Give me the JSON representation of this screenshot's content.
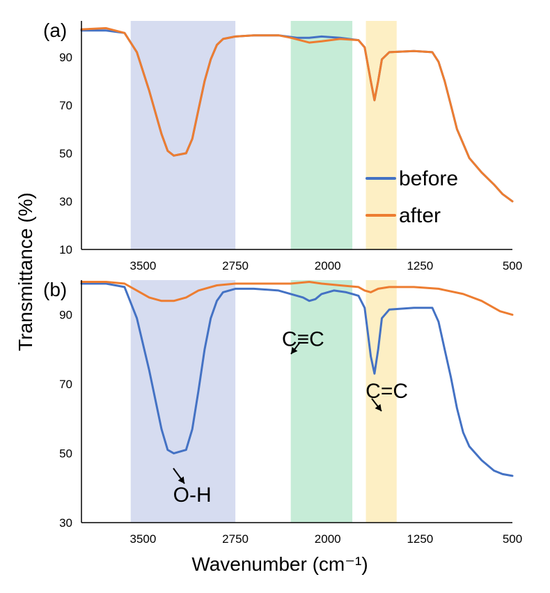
{
  "figure": {
    "shared_ylabel": "Transmittance (%)",
    "shared_xlabel": "Wavenumber (cm⁻¹)"
  },
  "colors": {
    "before": "#4472c4",
    "after": "#ed7d31",
    "band_oh": "#d6dcf0",
    "band_cc_triple": "#c6ecd7",
    "band_cc_double": "#fdefc4",
    "axis": "#000000"
  },
  "chart_data": [
    {
      "type": "line",
      "panel_label": "(a)",
      "xlim": [
        4000,
        500
      ],
      "ylim": [
        10,
        105
      ],
      "x_ticks": [
        3500,
        2750,
        2000,
        1250,
        500
      ],
      "y_ticks": [
        10,
        30,
        50,
        70,
        90
      ],
      "grid": false,
      "legend": {
        "position": "right-center",
        "entries": [
          "before",
          "after"
        ]
      },
      "bands": [
        {
          "name": "O-H",
          "from": 3600,
          "to": 2750,
          "color_key": "band_oh"
        },
        {
          "name": "C≡C",
          "from": 2300,
          "to": 1800,
          "color_key": "band_cc_triple"
        },
        {
          "name": "C=C",
          "from": 1690,
          "to": 1440,
          "color_key": "band_cc_double"
        }
      ],
      "series": [
        {
          "name": "before",
          "color_key": "before",
          "points": [
            [
              4000,
              101
            ],
            [
              3800,
              101
            ],
            [
              3650,
              100
            ],
            [
              3550,
              92
            ],
            [
              3450,
              76
            ],
            [
              3350,
              58
            ],
            [
              3300,
              51
            ],
            [
              3250,
              49
            ],
            [
              3150,
              50
            ],
            [
              3100,
              56
            ],
            [
              3050,
              68
            ],
            [
              3000,
              80
            ],
            [
              2950,
              89
            ],
            [
              2900,
              95
            ],
            [
              2850,
              97.5
            ],
            [
              2750,
              98.5
            ],
            [
              2600,
              99
            ],
            [
              2400,
              99
            ],
            [
              2250,
              98
            ],
            [
              2150,
              98
            ],
            [
              2050,
              98.5
            ],
            [
              1900,
              98
            ],
            [
              1750,
              97
            ],
            [
              1700,
              94
            ],
            [
              1650,
              80
            ],
            [
              1620,
              72
            ],
            [
              1590,
              80
            ],
            [
              1560,
              89
            ],
            [
              1500,
              92
            ],
            [
              1300,
              92.5
            ],
            [
              1150,
              92
            ],
            [
              1100,
              88
            ],
            [
              1050,
              80
            ],
            [
              1000,
              70
            ],
            [
              950,
              60
            ],
            [
              900,
              54
            ],
            [
              850,
              48
            ],
            [
              750,
              42
            ],
            [
              650,
              37
            ],
            [
              580,
              33
            ],
            [
              500,
              30
            ]
          ]
        },
        {
          "name": "after",
          "color_key": "after",
          "points": [
            [
              4000,
              101.5
            ],
            [
              3800,
              102
            ],
            [
              3650,
              100
            ],
            [
              3550,
              92
            ],
            [
              3450,
              76
            ],
            [
              3350,
              58
            ],
            [
              3300,
              51
            ],
            [
              3250,
              49
            ],
            [
              3150,
              50
            ],
            [
              3100,
              56
            ],
            [
              3050,
              68
            ],
            [
              3000,
              80
            ],
            [
              2950,
              89
            ],
            [
              2900,
              95
            ],
            [
              2850,
              97.5
            ],
            [
              2750,
              98.5
            ],
            [
              2600,
              99
            ],
            [
              2400,
              99
            ],
            [
              2300,
              98
            ],
            [
              2150,
              96
            ],
            [
              2050,
              96.5
            ],
            [
              1900,
              97.5
            ],
            [
              1750,
              97
            ],
            [
              1700,
              94
            ],
            [
              1650,
              80
            ],
            [
              1620,
              72
            ],
            [
              1590,
              80
            ],
            [
              1560,
              89
            ],
            [
              1500,
              92
            ],
            [
              1300,
              92.5
            ],
            [
              1150,
              92
            ],
            [
              1100,
              88
            ],
            [
              1050,
              80
            ],
            [
              1000,
              70
            ],
            [
              950,
              60
            ],
            [
              900,
              54
            ],
            [
              850,
              48
            ],
            [
              750,
              42
            ],
            [
              650,
              37
            ],
            [
              580,
              33
            ],
            [
              500,
              30
            ]
          ]
        }
      ]
    },
    {
      "type": "line",
      "panel_label": "(b)",
      "xlim": [
        4000,
        500
      ],
      "ylim": [
        30,
        100
      ],
      "x_ticks": [
        3500,
        2750,
        2000,
        1250,
        500
      ],
      "y_ticks": [
        30,
        50,
        70,
        90
      ],
      "grid": false,
      "bands": [
        {
          "name": "O-H",
          "from": 3600,
          "to": 2750,
          "color_key": "band_oh"
        },
        {
          "name": "C≡C",
          "from": 2300,
          "to": 1800,
          "color_key": "band_cc_triple"
        },
        {
          "name": "C=C",
          "from": 1690,
          "to": 1440,
          "color_key": "band_cc_double"
        }
      ],
      "annotations": [
        {
          "text": "O-H",
          "x": 3100,
          "y": 36
        },
        {
          "text": "C≡C",
          "x": 2200,
          "y": 81
        },
        {
          "text": "C=C",
          "x": 1520,
          "y": 66
        }
      ],
      "series": [
        {
          "name": "before",
          "color_key": "before",
          "points": [
            [
              4000,
              99
            ],
            [
              3800,
              99
            ],
            [
              3650,
              98
            ],
            [
              3550,
              89
            ],
            [
              3450,
              74
            ],
            [
              3350,
              57
            ],
            [
              3300,
              51
            ],
            [
              3250,
              50
            ],
            [
              3150,
              51
            ],
            [
              3100,
              57
            ],
            [
              3050,
              68
            ],
            [
              3000,
              80
            ],
            [
              2950,
              89
            ],
            [
              2900,
              94
            ],
            [
              2850,
              96.5
            ],
            [
              2750,
              97.5
            ],
            [
              2600,
              97.5
            ],
            [
              2400,
              97
            ],
            [
              2300,
              96
            ],
            [
              2200,
              95
            ],
            [
              2150,
              94
            ],
            [
              2100,
              94.5
            ],
            [
              2050,
              96
            ],
            [
              1950,
              97
            ],
            [
              1850,
              96.5
            ],
            [
              1750,
              95.5
            ],
            [
              1700,
              92
            ],
            [
              1650,
              78
            ],
            [
              1620,
              73
            ],
            [
              1590,
              80
            ],
            [
              1560,
              89
            ],
            [
              1500,
              91.5
            ],
            [
              1300,
              92
            ],
            [
              1150,
              92
            ],
            [
              1100,
              88
            ],
            [
              1050,
              80
            ],
            [
              1000,
              72
            ],
            [
              950,
              63
            ],
            [
              900,
              56
            ],
            [
              850,
              52
            ],
            [
              750,
              48
            ],
            [
              650,
              45
            ],
            [
              580,
              44
            ],
            [
              500,
              43.5
            ]
          ]
        },
        {
          "name": "after",
          "color_key": "after",
          "points": [
            [
              4000,
              99.5
            ],
            [
              3800,
              99.5
            ],
            [
              3650,
              99
            ],
            [
              3550,
              97
            ],
            [
              3450,
              95
            ],
            [
              3350,
              94
            ],
            [
              3250,
              94
            ],
            [
              3150,
              95
            ],
            [
              3050,
              97
            ],
            [
              2900,
              98.5
            ],
            [
              2750,
              99
            ],
            [
              2500,
              99
            ],
            [
              2300,
              99
            ],
            [
              2150,
              99.5
            ],
            [
              2050,
              99
            ],
            [
              1900,
              98.5
            ],
            [
              1750,
              98
            ],
            [
              1700,
              97
            ],
            [
              1650,
              96.5
            ],
            [
              1620,
              97
            ],
            [
              1590,
              97.5
            ],
            [
              1500,
              98
            ],
            [
              1300,
              98
            ],
            [
              1100,
              97.5
            ],
            [
              900,
              96
            ],
            [
              750,
              94
            ],
            [
              600,
              91
            ],
            [
              500,
              90
            ]
          ]
        }
      ]
    }
  ]
}
